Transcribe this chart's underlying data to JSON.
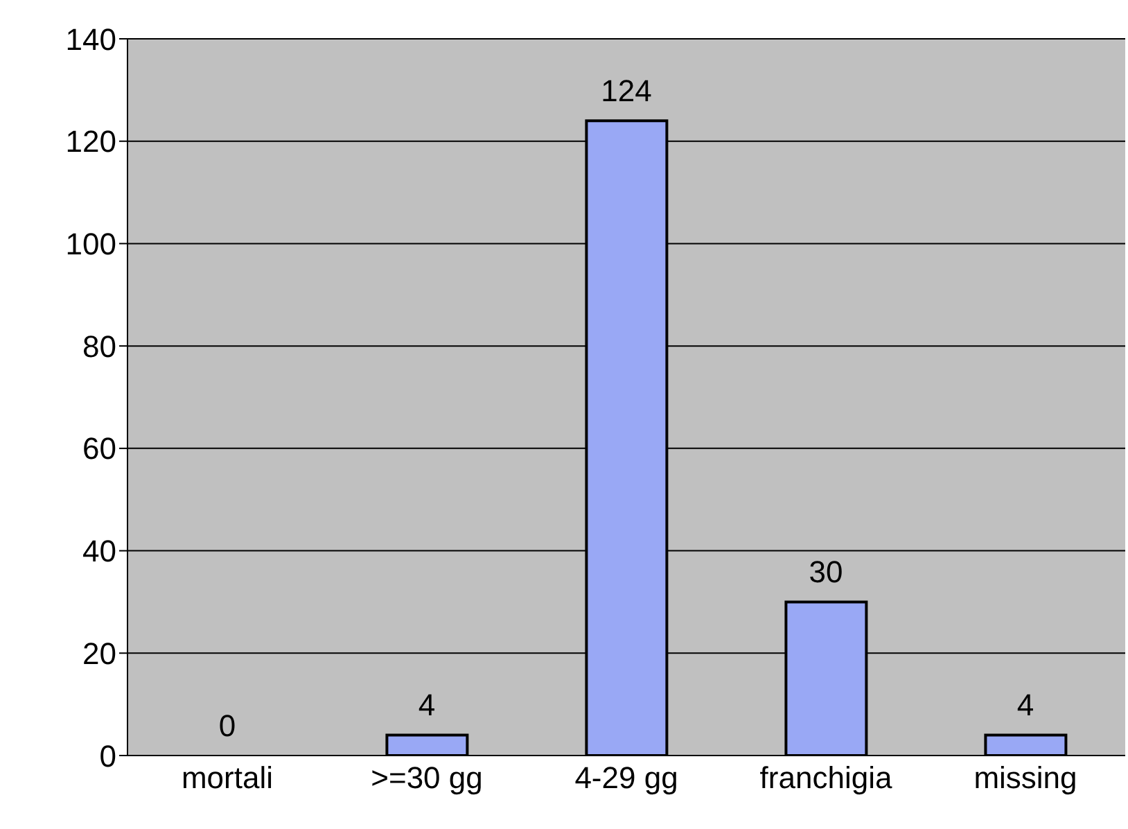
{
  "chart_data": {
    "type": "bar",
    "categories": [
      "mortali",
      ">=30 gg",
      "4-29 gg",
      "franchigia",
      "missing"
    ],
    "values": [
      0,
      4,
      124,
      30,
      4
    ],
    "color": "#99a8f5",
    "ylim": [
      0,
      140
    ],
    "yticks": [
      0,
      20,
      40,
      60,
      80,
      100,
      120,
      140
    ],
    "grid": "y",
    "data_labels": true
  }
}
